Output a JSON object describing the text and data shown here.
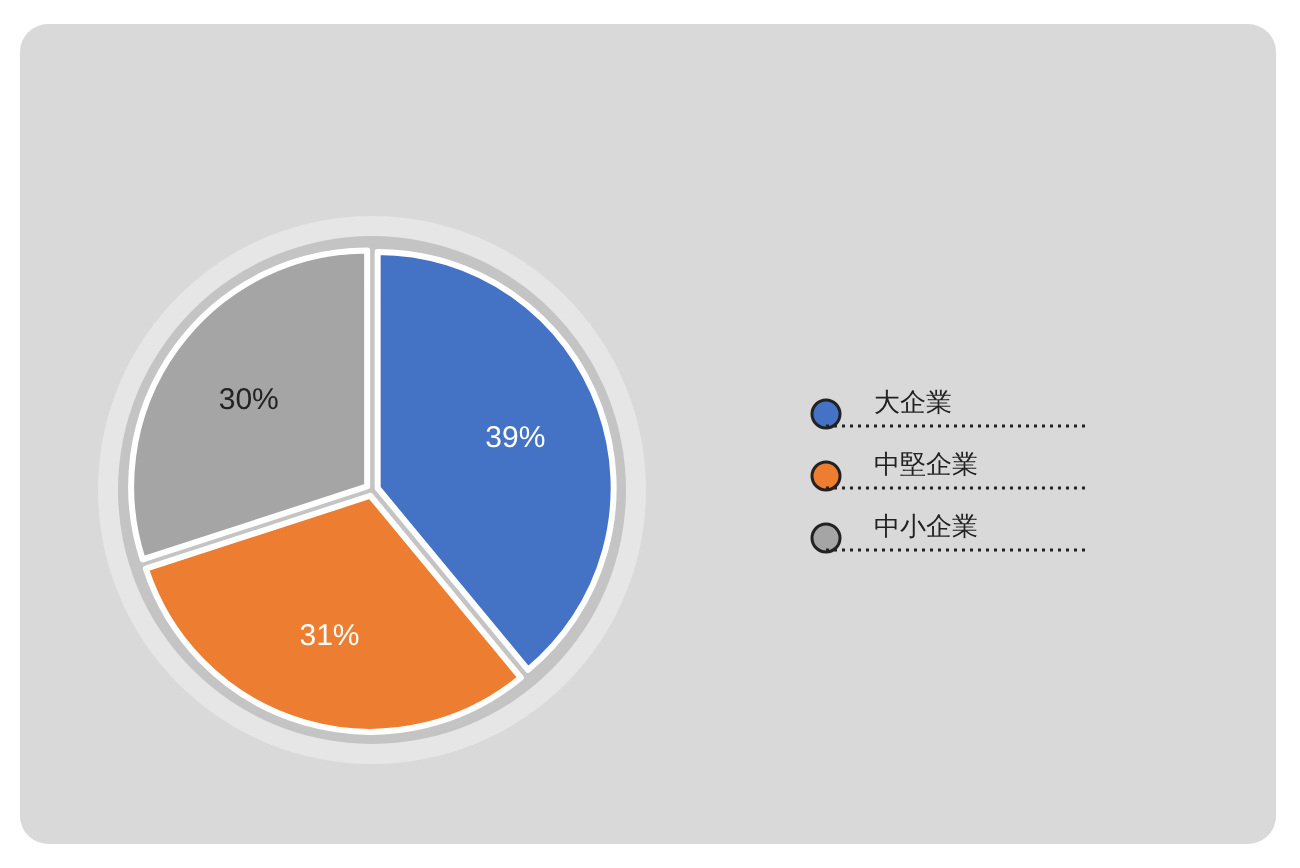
{
  "chart_data": {
    "type": "pie",
    "categories": [
      "大企業",
      "中堅企業",
      "中小企業"
    ],
    "values": [
      39,
      31,
      30
    ],
    "colors": [
      "#4472c4",
      "#ed7d31",
      "#a5a5a5"
    ],
    "value_labels": [
      "39%",
      "31%",
      "30%"
    ],
    "legend": "right"
  }
}
